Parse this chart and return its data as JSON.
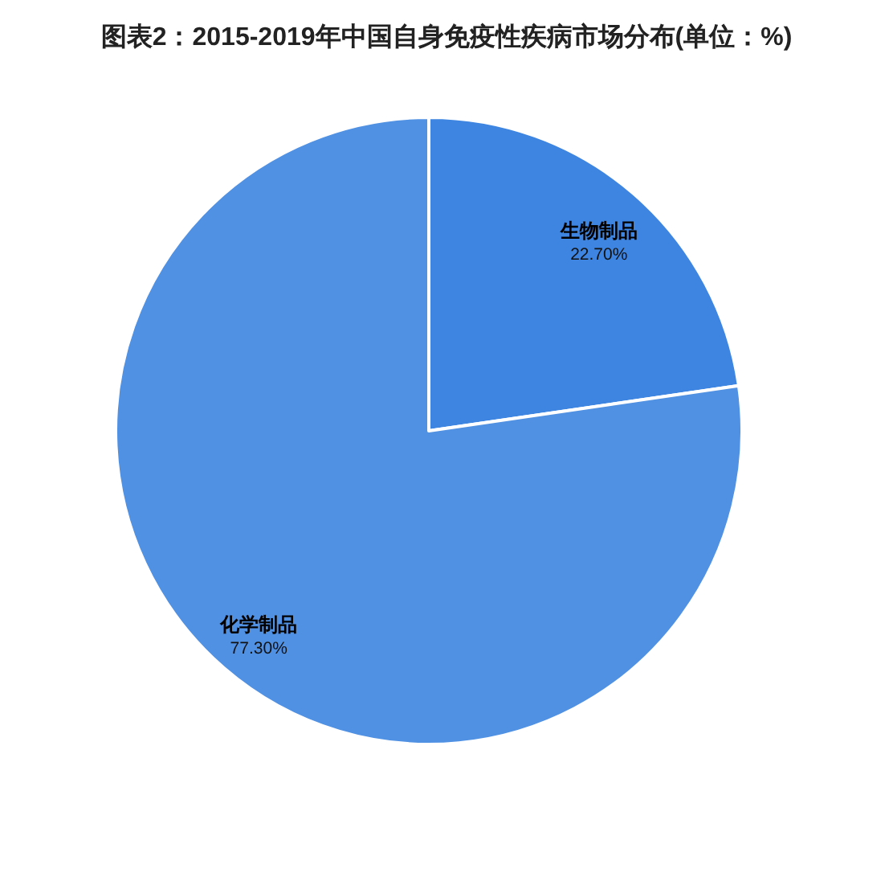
{
  "chart_data": {
    "type": "pie",
    "title": "图表2：2015-2019年中国自身免疫性疾病市场分布(单位：%)",
    "categories": [
      "生物制品",
      "化学制品"
    ],
    "values": [
      22.7,
      77.3
    ],
    "value_labels": [
      "22.70%",
      "77.30%"
    ],
    "colors": [
      "#3e85e1",
      "#5091e4"
    ]
  }
}
